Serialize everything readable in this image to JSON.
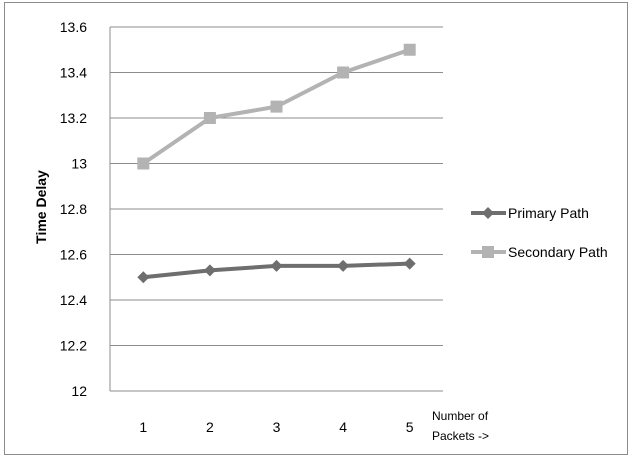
{
  "chart_data": {
    "type": "line",
    "title": "",
    "ylabel": "Time Delay",
    "xlabel_line1": "Number of",
    "xlabel_line2": "Packets  ->",
    "categories": [
      "1",
      "2",
      "3",
      "4",
      "5"
    ],
    "ylim": [
      12,
      13.6
    ],
    "y_ticks": [
      "12",
      "12.2",
      "12.4",
      "12.6",
      "12.8",
      "13",
      "13.2",
      "13.4",
      "13.6"
    ],
    "grid": true,
    "legend_position": "right",
    "series": [
      {
        "name": "Primary Path",
        "values": [
          12.5,
          12.53,
          12.55,
          12.55,
          12.56
        ],
        "color": "#6e6e6e",
        "marker": "diamond"
      },
      {
        "name": "Secondary Path",
        "values": [
          13.0,
          13.2,
          13.25,
          13.4,
          13.5
        ],
        "color": "#b3b3b3",
        "marker": "square"
      }
    ]
  }
}
